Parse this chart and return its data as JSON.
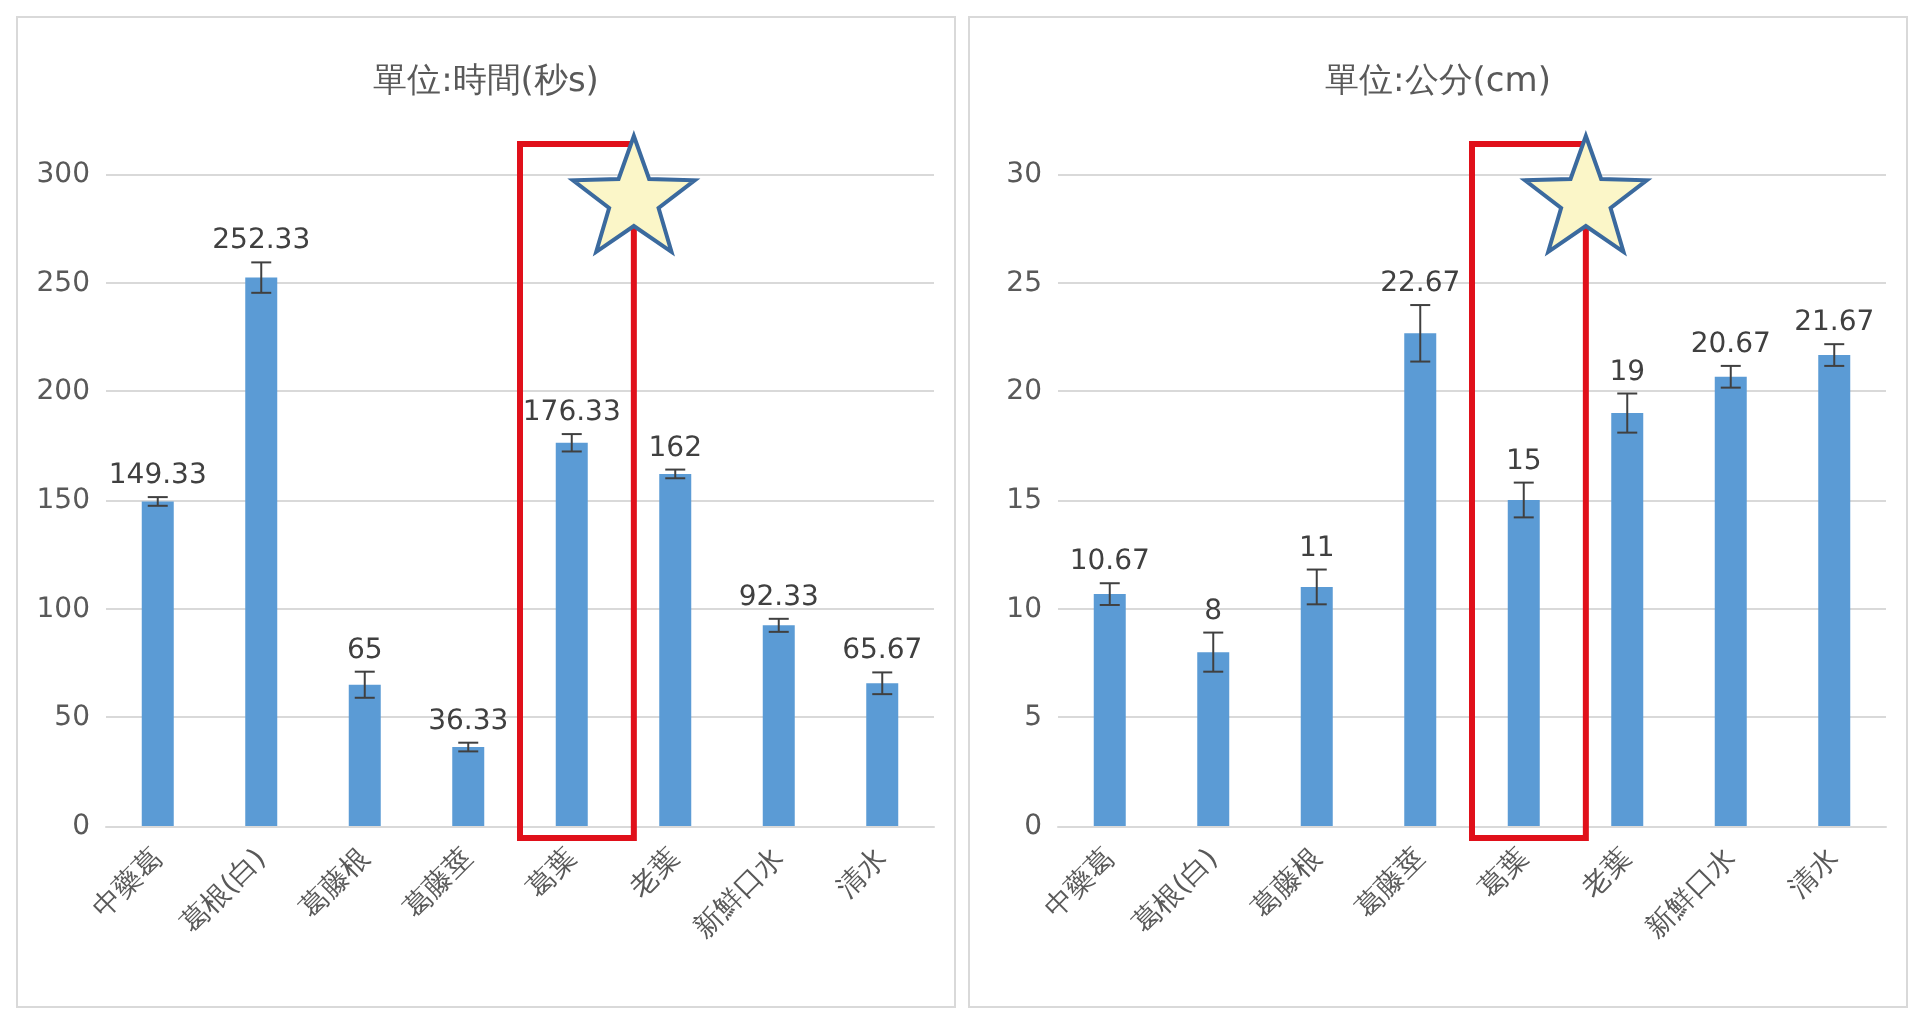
{
  "chart_data": [
    {
      "type": "bar",
      "title": "單位:時間(秒s)",
      "categories": [
        "中藥葛",
        "葛根(白)",
        "葛藤根",
        "葛藤莖",
        "葛葉",
        "老葉",
        "新鮮口水",
        "清水"
      ],
      "values": [
        149.33,
        252.33,
        65,
        36.33,
        176.33,
        162,
        92.33,
        65.67
      ],
      "errors": [
        2,
        7,
        6,
        2,
        4,
        2,
        3,
        5
      ],
      "color": "#5b9bd5",
      "ylim": [
        0,
        300
      ],
      "yticks": [
        0,
        50,
        100,
        150,
        200,
        250,
        300
      ],
      "grid": "y",
      "data_labels": true
    },
    {
      "type": "bar",
      "title": "單位:公分(cm)",
      "categories": [
        "中藥葛",
        "葛根(白)",
        "葛藤根",
        "葛藤莖",
        "葛葉",
        "老葉",
        "新鮮口水",
        "清水"
      ],
      "values": [
        10.67,
        8,
        11,
        22.67,
        15,
        19,
        20.67,
        21.67
      ],
      "errors": [
        0.5,
        0.9,
        0.8,
        1.3,
        0.8,
        0.9,
        0.5,
        0.5
      ],
      "color": "#5b9bd5",
      "ylim": [
        0,
        30
      ],
      "yticks": [
        0,
        5,
        10,
        15,
        20,
        25,
        30
      ],
      "grid": "y",
      "data_labels": true
    }
  ]
}
